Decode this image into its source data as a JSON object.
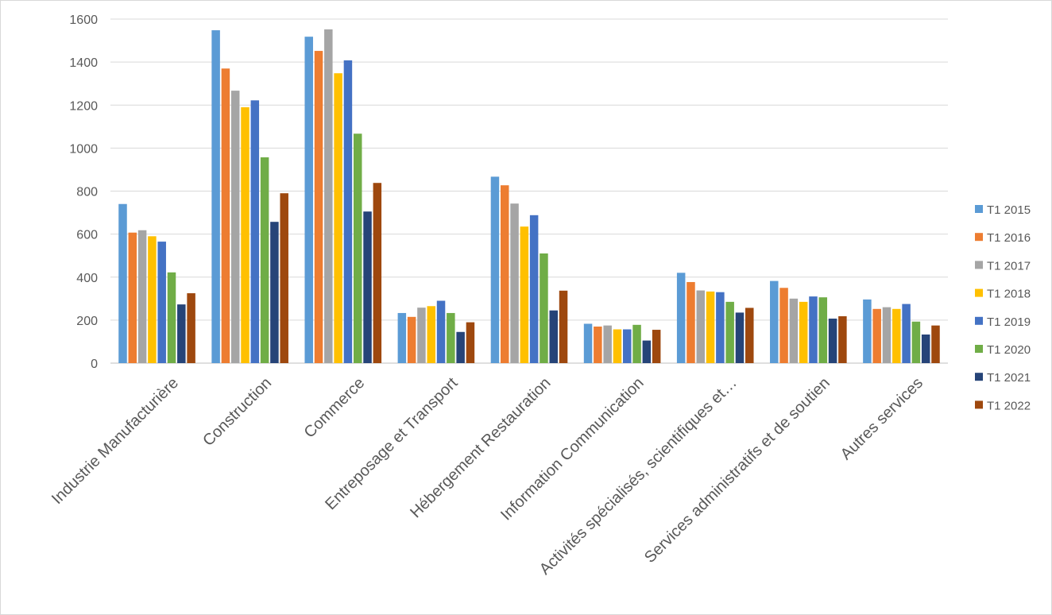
{
  "chart_data": {
    "type": "bar",
    "title": "",
    "xlabel": "",
    "ylabel": "",
    "ylim": [
      0,
      1600
    ],
    "yticks": [
      0,
      200,
      400,
      600,
      800,
      1000,
      1200,
      1400,
      1600
    ],
    "grid": true,
    "legend_position": "right",
    "categories": [
      "Industrie Manufacturière",
      "Construction",
      "Commerce",
      "Entreposage et Transport",
      "Hébergement Restauration",
      "Information Communication",
      "Activités spécialisés, scientifiques et…",
      "Services administratifs et de soutien",
      "Autres services"
    ],
    "series": [
      {
        "name": "T1 2015",
        "color": "#5B9BD5",
        "values": [
          740,
          1548,
          1518,
          233,
          867,
          183,
          420,
          382,
          296
        ]
      },
      {
        "name": "T1 2016",
        "color": "#ED7D31",
        "values": [
          607,
          1370,
          1452,
          215,
          827,
          170,
          377,
          350,
          252
        ]
      },
      {
        "name": "T1 2017",
        "color": "#A5A5A5",
        "values": [
          618,
          1267,
          1552,
          258,
          742,
          175,
          338,
          300,
          260
        ]
      },
      {
        "name": "T1 2018",
        "color": "#FFC000",
        "values": [
          590,
          1190,
          1348,
          265,
          635,
          157,
          333,
          285,
          252
        ]
      },
      {
        "name": "T1 2019",
        "color": "#4472C4",
        "values": [
          565,
          1222,
          1408,
          290,
          688,
          157,
          330,
          310,
          275
        ]
      },
      {
        "name": "T1 2020",
        "color": "#70AD47",
        "values": [
          422,
          957,
          1067,
          233,
          510,
          178,
          285,
          306,
          193
        ]
      },
      {
        "name": "T1 2021",
        "color": "#264478",
        "values": [
          273,
          657,
          705,
          145,
          245,
          105,
          235,
          207,
          133
        ]
      },
      {
        "name": "T1 2022",
        "color": "#9E480E",
        "values": [
          325,
          790,
          838,
          190,
          337,
          155,
          257,
          218,
          175
        ]
      }
    ]
  }
}
